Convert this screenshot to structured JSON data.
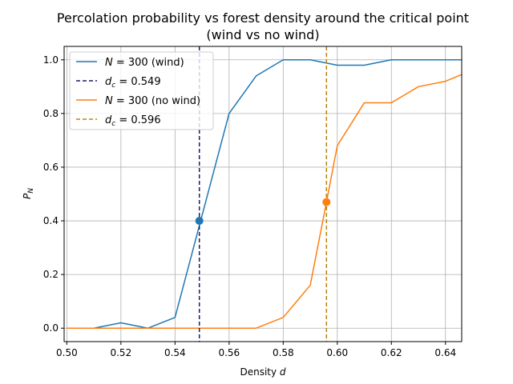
{
  "chart_data": {
    "type": "line",
    "title_line1": "Percolation probability vs forest density around the critical point",
    "title_line2": "(wind vs no wind)",
    "xlabel_prefix": "Density ",
    "xlabel_var": "d",
    "ylabel_main": "P",
    "ylabel_sub": "N",
    "xlim": [
      0.499,
      0.646
    ],
    "ylim": [
      -0.05,
      1.05
    ],
    "grid": true,
    "legend_position": "top-left",
    "xticks": [
      0.5,
      0.52,
      0.54,
      0.56,
      0.58,
      0.6,
      0.62,
      0.64
    ],
    "xtick_labels": [
      "0.50",
      "0.52",
      "0.54",
      "0.56",
      "0.58",
      "0.60",
      "0.62",
      "0.64"
    ],
    "yticks": [
      0.0,
      0.2,
      0.4,
      0.6,
      0.8,
      1.0
    ],
    "ytick_labels": [
      "0.0",
      "0.2",
      "0.4",
      "0.6",
      "0.8",
      "1.0"
    ],
    "series": [
      {
        "legend_var": "N",
        "legend_rest": " =  300 (wind)",
        "color": "#1f77b4",
        "x": [
          0.5,
          0.51,
          0.52,
          0.53,
          0.54,
          0.55,
          0.56,
          0.57,
          0.58,
          0.59,
          0.6,
          0.61,
          0.62,
          0.63,
          0.64,
          0.646
        ],
        "y": [
          0.0,
          0.0,
          0.02,
          0.0,
          0.04,
          0.42,
          0.8,
          0.94,
          1.0,
          1.0,
          0.98,
          0.98,
          1.0,
          1.0,
          1.0,
          1.0
        ],
        "marker": {
          "x": 0.549,
          "y": 0.4
        }
      },
      {
        "legend_var": "N",
        "legend_rest": " =  300 (no wind)",
        "color": "#ff7f0e",
        "x": [
          0.5,
          0.51,
          0.52,
          0.53,
          0.54,
          0.55,
          0.56,
          0.57,
          0.58,
          0.59,
          0.596,
          0.6,
          0.61,
          0.62,
          0.63,
          0.64,
          0.646
        ],
        "y": [
          0.0,
          0.0,
          0.0,
          0.0,
          0.0,
          0.0,
          0.0,
          0.0,
          0.04,
          0.16,
          0.47,
          0.68,
          0.84,
          0.84,
          0.9,
          0.92,
          0.945
        ],
        "marker": {
          "x": 0.596,
          "y": 0.47
        }
      }
    ],
    "critical_lines": [
      {
        "legend_var": "d",
        "legend_sub": "c",
        "legend_rest": " = 0.549",
        "x": 0.549,
        "color": "#191970"
      },
      {
        "legend_var": "d",
        "legend_sub": "c",
        "legend_rest": " = 0.596",
        "x": 0.596,
        "color": "#b8860b"
      }
    ]
  }
}
